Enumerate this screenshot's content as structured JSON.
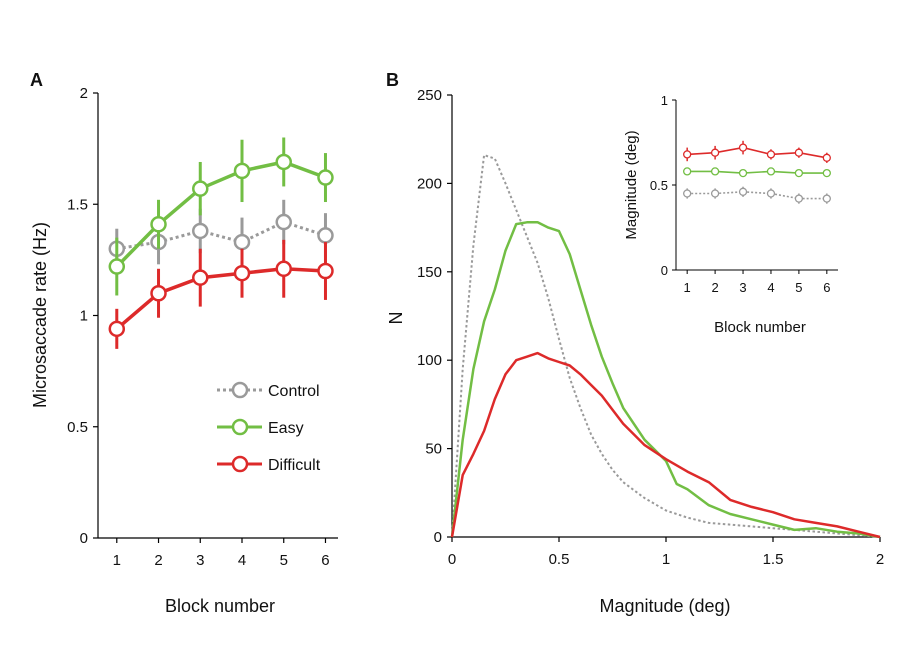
{
  "colors": {
    "control": "#9a9a9a",
    "easy": "#72be44",
    "difficult": "#dd2a2a",
    "axis": "#000000"
  },
  "chart_data": [
    {
      "panel": "A",
      "type": "line",
      "xlabel": "Block number",
      "ylabel": "Microsaccade rate (Hz)",
      "xlim": [
        0.55,
        6.3
      ],
      "ylim": [
        0,
        2
      ],
      "x": [
        1,
        2,
        3,
        4,
        5,
        6
      ],
      "xticks": [
        "1",
        "2",
        "3",
        "4",
        "5",
        "6"
      ],
      "yticks": [
        "0",
        "0.5",
        "1",
        "1.5",
        "2"
      ],
      "legend_position": "center-right",
      "series": [
        {
          "key": "control",
          "name": "Control",
          "style": "dotted",
          "values": [
            1.3,
            1.33,
            1.38,
            1.33,
            1.42,
            1.36
          ],
          "errors": [
            0.09,
            0.1,
            0.1,
            0.11,
            0.1,
            0.1
          ]
        },
        {
          "key": "easy",
          "name": "Easy",
          "style": "solid",
          "values": [
            1.22,
            1.41,
            1.57,
            1.65,
            1.69,
            1.62
          ],
          "errors": [
            0.13,
            0.11,
            0.12,
            0.14,
            0.11,
            0.11
          ]
        },
        {
          "key": "difficult",
          "name": "Difficult",
          "style": "solid",
          "values": [
            0.94,
            1.1,
            1.17,
            1.19,
            1.21,
            1.2
          ],
          "errors": [
            0.09,
            0.11,
            0.13,
            0.11,
            0.13,
            0.13
          ]
        }
      ]
    },
    {
      "panel": "B",
      "type": "line",
      "xlabel": "Magnitude (deg)",
      "ylabel": "N",
      "xlim": [
        0,
        2
      ],
      "ylim": [
        0,
        250
      ],
      "xticks": [
        "0",
        "0.5",
        "1",
        "1.5",
        "2"
      ],
      "yticks": [
        "0",
        "50",
        "100",
        "150",
        "200",
        "250"
      ],
      "series": [
        {
          "key": "control",
          "style": "dotted",
          "x": [
            0,
            0.05,
            0.1,
            0.15,
            0.2,
            0.25,
            0.3,
            0.35,
            0.4,
            0.45,
            0.5,
            0.55,
            0.6,
            0.65,
            0.7,
            0.75,
            0.8,
            0.9,
            1.0,
            1.1,
            1.2,
            1.3,
            1.4,
            1.5,
            1.6,
            1.7,
            1.8,
            1.9,
            2.0
          ],
          "values": [
            0,
            95,
            165,
            216,
            214,
            200,
            185,
            170,
            155,
            135,
            112,
            90,
            73,
            58,
            47,
            38,
            31,
            22,
            15,
            11,
            8,
            7,
            6,
            5,
            4,
            3,
            2,
            1,
            0
          ]
        },
        {
          "key": "easy",
          "style": "solid",
          "x": [
            0,
            0.05,
            0.1,
            0.15,
            0.2,
            0.25,
            0.3,
            0.35,
            0.4,
            0.45,
            0.5,
            0.55,
            0.6,
            0.65,
            0.7,
            0.75,
            0.8,
            0.9,
            1.0,
            1.05,
            1.1,
            1.2,
            1.3,
            1.4,
            1.5,
            1.6,
            1.7,
            1.8,
            1.9,
            2.0
          ],
          "values": [
            0,
            55,
            95,
            122,
            140,
            162,
            177,
            178,
            178,
            175,
            173,
            160,
            140,
            120,
            102,
            87,
            73,
            55,
            43,
            30,
            27,
            18,
            13,
            10,
            7,
            4,
            5,
            3,
            2,
            0
          ]
        },
        {
          "key": "difficult",
          "style": "solid",
          "x": [
            0,
            0.05,
            0.1,
            0.15,
            0.2,
            0.25,
            0.3,
            0.35,
            0.4,
            0.45,
            0.5,
            0.55,
            0.6,
            0.65,
            0.7,
            0.75,
            0.8,
            0.9,
            1.0,
            1.1,
            1.2,
            1.3,
            1.4,
            1.5,
            1.6,
            1.7,
            1.8,
            1.9,
            2.0
          ],
          "values": [
            0,
            35,
            47,
            60,
            78,
            92,
            100,
            102,
            104,
            101,
            99,
            97,
            92,
            86,
            80,
            72,
            64,
            52,
            44,
            37,
            31,
            21,
            17,
            14,
            10,
            8,
            6,
            3,
            0
          ]
        }
      ]
    },
    {
      "panel": "B-inset",
      "type": "line",
      "xlabel": "Block number",
      "ylabel": "Magnitude (deg)",
      "xlim": [
        0.6,
        6.4
      ],
      "ylim": [
        0,
        1
      ],
      "x": [
        1,
        2,
        3,
        4,
        5,
        6
      ],
      "xticks": [
        "1",
        "2",
        "3",
        "4",
        "5",
        "6"
      ],
      "yticks": [
        "0",
        "0.5",
        "1"
      ],
      "series": [
        {
          "key": "control",
          "style": "dotted",
          "values": [
            0.45,
            0.45,
            0.46,
            0.45,
            0.42,
            0.42
          ],
          "errors": [
            0.03,
            0.03,
            0.03,
            0.03,
            0.03,
            0.03
          ]
        },
        {
          "key": "easy",
          "style": "solid",
          "values": [
            0.58,
            0.58,
            0.57,
            0.58,
            0.57,
            0.57
          ],
          "errors": [
            0.02,
            0.02,
            0.02,
            0.02,
            0.02,
            0.02
          ]
        },
        {
          "key": "difficult",
          "style": "solid",
          "values": [
            0.68,
            0.69,
            0.72,
            0.68,
            0.69,
            0.66
          ],
          "errors": [
            0.04,
            0.04,
            0.04,
            0.03,
            0.03,
            0.03
          ]
        }
      ]
    }
  ]
}
